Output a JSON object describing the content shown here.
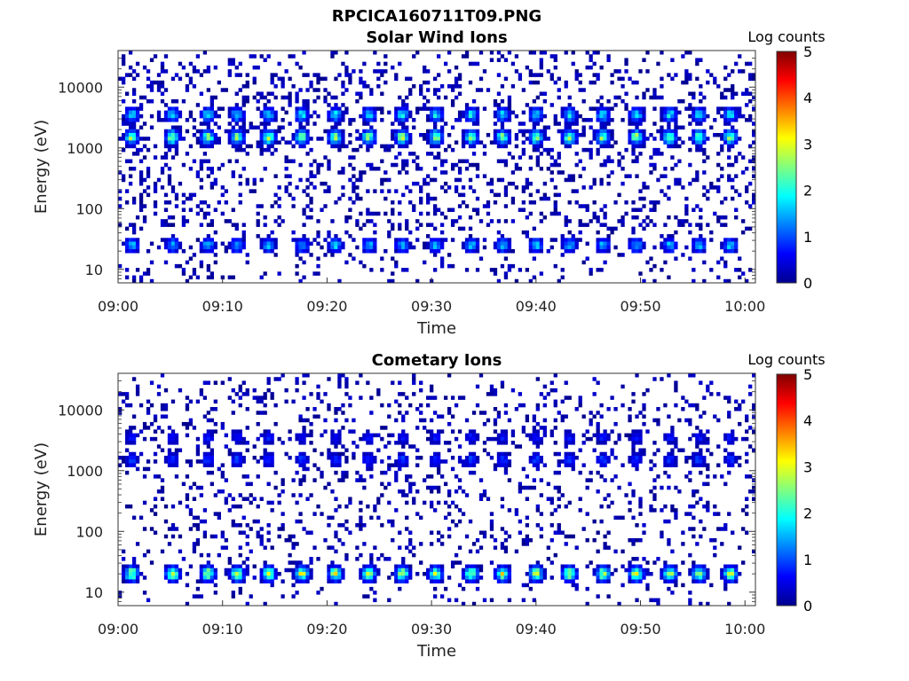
{
  "figure_title": "RPCICA160711T09.PNG",
  "colorbar_map": "jet",
  "chart_data": [
    {
      "type": "heatmap",
      "title": "Solar Wind Ions",
      "xlabel": "Time",
      "ylabel": "Energy (eV)",
      "yscale": "log",
      "ylim": [
        6,
        40000
      ],
      "xlim": [
        "09:00",
        "10:01"
      ],
      "x_ticks": [
        "09:00",
        "09:10",
        "09:20",
        "09:30",
        "09:40",
        "09:50",
        "10:00"
      ],
      "y_ticks": [
        "10",
        "100",
        "1000",
        "10000"
      ],
      "colorbar": {
        "label": "Log counts",
        "range": [
          0,
          5
        ],
        "ticks": [
          "0",
          "1",
          "2",
          "3",
          "4",
          "5"
        ]
      },
      "grid": false,
      "pulse_times_min": [
        1.3,
        5.2,
        8.6,
        11.4,
        14.4,
        17.6,
        20.8,
        24.0,
        27.2,
        30.4,
        33.8,
        36.8,
        40.0,
        43.2,
        46.4,
        49.6,
        52.8,
        55.6,
        58.6
      ],
      "features": [
        {
          "energy_eV": 1500,
          "peak_log_counts": 2.5,
          "note": ""
        },
        {
          "energy_eV": 3500,
          "peak_log_counts": 1.8,
          "note": ""
        },
        {
          "energy_eV": 25,
          "peak_log_counts": 1.6,
          "note": ""
        }
      ],
      "background_log_counts": 0.2
    },
    {
      "type": "heatmap",
      "title": "Cometary Ions",
      "xlabel": "Time",
      "ylabel": "Energy (eV)",
      "yscale": "log",
      "ylim": [
        6,
        40000
      ],
      "xlim": [
        "09:00",
        "10:01"
      ],
      "x_ticks": [
        "09:00",
        "09:10",
        "09:20",
        "09:30",
        "09:40",
        "09:50",
        "10:00"
      ],
      "y_ticks": [
        "10",
        "100",
        "1000",
        "10000"
      ],
      "colorbar": {
        "label": "Log counts",
        "range": [
          0,
          5
        ],
        "ticks": [
          "0",
          "1",
          "2",
          "3",
          "4",
          "5"
        ]
      },
      "grid": false,
      "pulse_times_min": [
        1.3,
        5.2,
        8.6,
        11.4,
        14.4,
        17.6,
        20.8,
        24.0,
        27.2,
        30.4,
        33.8,
        36.8,
        40.0,
        43.2,
        46.4,
        49.6,
        52.8,
        55.6,
        58.6
      ],
      "features": [
        {
          "energy_eV": 1500,
          "peak_log_counts": 0.9,
          "note": ""
        },
        {
          "energy_eV": 3500,
          "peak_log_counts": 0.7,
          "note": ""
        },
        {
          "energy_eV": 20,
          "peak_log_counts": 2.8,
          "note": ""
        }
      ],
      "background_log_counts": 0.15
    }
  ]
}
